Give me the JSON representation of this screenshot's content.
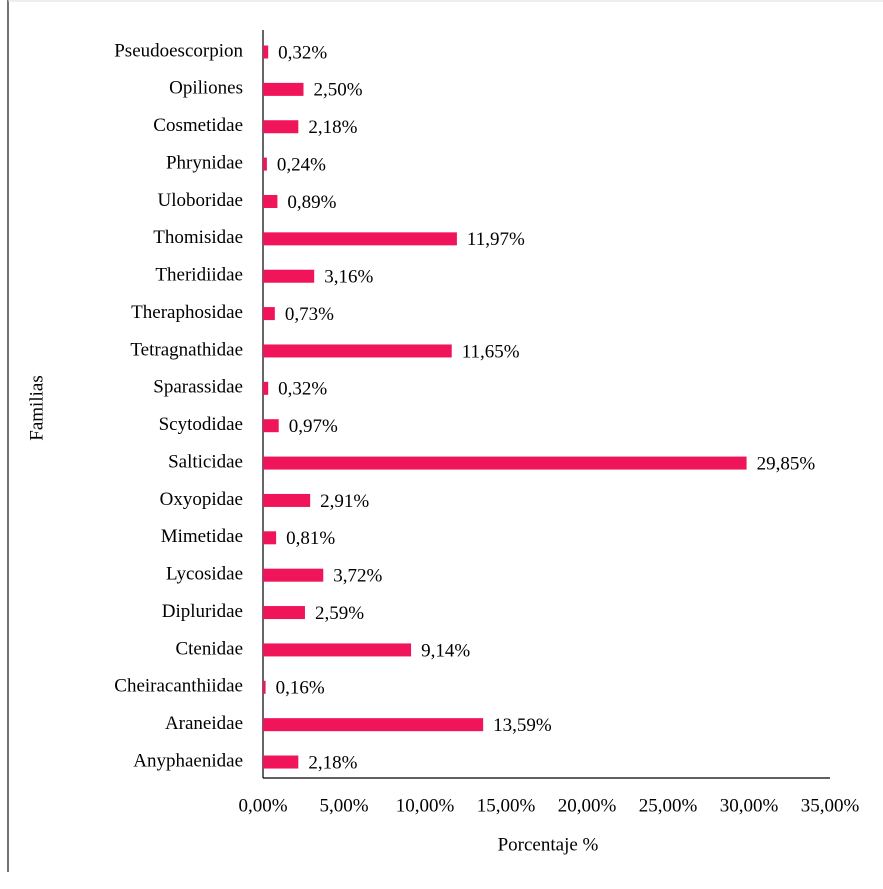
{
  "chart_data": {
    "type": "bar",
    "orientation": "horizontal",
    "x_label": "Porcentaje %",
    "y_label": "Familias",
    "categories": [
      "Pseudoescorpion",
      "Opiliones",
      "Cosmetidae",
      "Phrynidae",
      "Uloboridae",
      "Thomisidae",
      "Theridiidae",
      "Theraphosidae",
      "Tetragnathidae",
      "Sparassidae",
      "Scytodidae",
      "Salticidae",
      "Oxyopidae",
      "Mimetidae",
      "Lycosidae",
      "Dipluridae",
      "Ctenidae",
      "Cheiracanthiidae",
      "Araneidae",
      "Anyphaenidae"
    ],
    "values": [
      0.32,
      2.5,
      2.18,
      0.24,
      0.89,
      11.97,
      3.16,
      0.73,
      11.65,
      0.32,
      0.97,
      29.85,
      2.91,
      0.81,
      3.72,
      2.59,
      9.14,
      0.16,
      13.59,
      2.18
    ],
    "value_labels": [
      "0,32%",
      "2,50%",
      "2,18%",
      "0,24%",
      "0,89%",
      "11,97%",
      "3,16%",
      "0,73%",
      "11,65%",
      "0,32%",
      "0,97%",
      "29,85%",
      "2,91%",
      "0,81%",
      "3,72%",
      "2,59%",
      "9,14%",
      "0,16%",
      "13,59%",
      "2,18%"
    ],
    "color": "#f0145a",
    "xlim": [
      0,
      35
    ],
    "xticks": [
      {
        "value": 0,
        "label": "0,00%"
      },
      {
        "value": 5,
        "label": "5,00%"
      },
      {
        "value": 10,
        "label": "10,00%"
      },
      {
        "value": 15,
        "label": "15,00%"
      },
      {
        "value": 20,
        "label": "20,00%"
      },
      {
        "value": 25,
        "label": "25,00%"
      },
      {
        "value": 30,
        "label": "30,00%"
      },
      {
        "value": 35,
        "label": "35,00%"
      }
    ]
  }
}
